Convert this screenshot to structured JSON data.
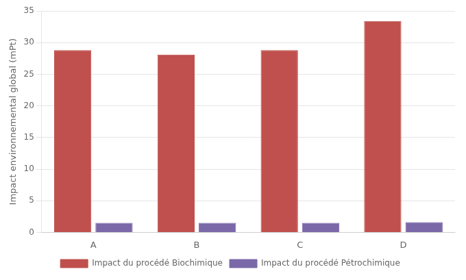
{
  "chart_data": {
    "type": "bar",
    "categories": [
      "A",
      "B",
      "C",
      "D"
    ],
    "series": [
      {
        "name": "Impact du procédé Biochimique",
        "color": "#C0504D",
        "values": [
          28.8,
          28.1,
          28.8,
          33.4
        ]
      },
      {
        "name": "Impact du procédé Pétrochimique",
        "color": "#7B68A8",
        "values": [
          1.5,
          1.5,
          1.5,
          1.6
        ]
      }
    ],
    "ylabel": "Impact environnemental global (mPt)",
    "ylim": [
      0,
      35
    ],
    "yticks": [
      0,
      5,
      10,
      15,
      20,
      25,
      30,
      35
    ],
    "grid": true,
    "legend": "bottom"
  }
}
